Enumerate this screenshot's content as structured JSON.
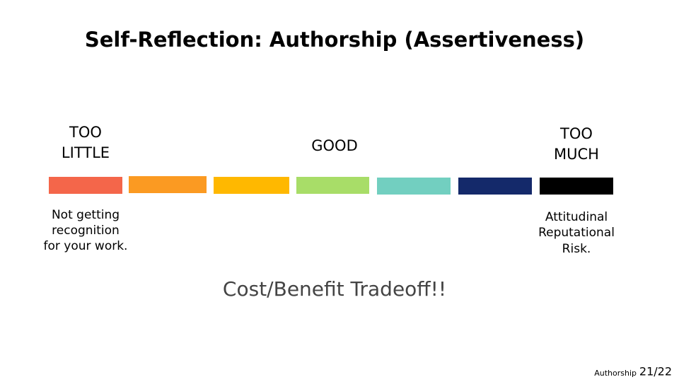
{
  "title": "Self-Reflection: Authorship (Assertiveness)",
  "scale": {
    "low": {
      "heading": [
        "TOO",
        "LITTLE"
      ],
      "description": [
        "Not getting",
        "recognition",
        "for your work."
      ]
    },
    "middle": {
      "heading": [
        "GOOD"
      ]
    },
    "high": {
      "heading": [
        "TOO",
        "MUCH"
      ],
      "description": [
        "Attitudinal",
        "Reputational",
        "Risk."
      ]
    }
  },
  "note": "Cost/Benefit Tradeoff!!",
  "footer": {
    "section": "Authorship",
    "page": "21/22"
  }
}
